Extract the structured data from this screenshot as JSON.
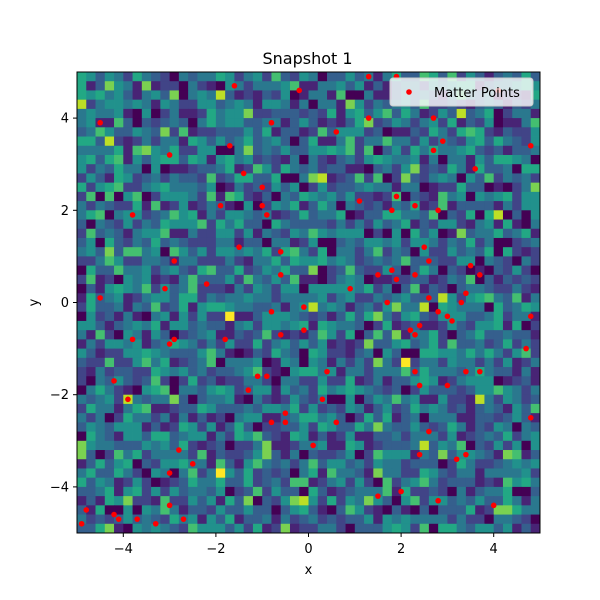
{
  "chart_data": {
    "type": "scatter",
    "title": "Snapshot 1",
    "xlabel": "x",
    "ylabel": "y",
    "xlim": [
      -5,
      5
    ],
    "ylim": [
      -5,
      5
    ],
    "x_ticks": [
      -4,
      -2,
      0,
      2,
      4
    ],
    "y_ticks": [
      -4,
      -2,
      0,
      2,
      4
    ],
    "x_tick_labels": [
      "−4",
      "−2",
      "0",
      "2",
      "4"
    ],
    "y_tick_labels": [
      "−4",
      "−2",
      "0",
      "2",
      "4"
    ],
    "background": {
      "type": "heatmap",
      "colormap": "viridis",
      "grid_size": 50
    },
    "legend": {
      "position": "top-right",
      "label": "Matter Points"
    },
    "series": [
      {
        "name": "Matter Points",
        "color": "#ff0000",
        "points": [
          [
            -4.5,
            3.9
          ],
          [
            -1.6,
            4.7
          ],
          [
            -0.2,
            4.6
          ],
          [
            1.3,
            4.9
          ],
          [
            1.9,
            4.9
          ],
          [
            4.1,
            4.6
          ],
          [
            -0.8,
            3.9
          ],
          [
            0.6,
            3.7
          ],
          [
            1.3,
            4.0
          ],
          [
            2.7,
            4.0
          ],
          [
            2.9,
            3.5
          ],
          [
            -1.7,
            3.4
          ],
          [
            -3.0,
            3.2
          ],
          [
            2.7,
            3.3
          ],
          [
            4.8,
            3.4
          ],
          [
            -1.4,
            2.8
          ],
          [
            3.6,
            2.9
          ],
          [
            -1.0,
            2.5
          ],
          [
            -1.9,
            2.1
          ],
          [
            -1.0,
            2.1
          ],
          [
            -0.9,
            1.9
          ],
          [
            -3.8,
            1.9
          ],
          [
            1.1,
            2.2
          ],
          [
            1.9,
            2.3
          ],
          [
            2.3,
            2.1
          ],
          [
            1.8,
            2.0
          ],
          [
            2.8,
            2.0
          ],
          [
            -1.5,
            1.2
          ],
          [
            -0.6,
            1.1
          ],
          [
            2.5,
            1.2
          ],
          [
            -2.9,
            0.9
          ],
          [
            2.6,
            0.9
          ],
          [
            -0.6,
            0.6
          ],
          [
            1.5,
            0.6
          ],
          [
            1.8,
            0.7
          ],
          [
            1.9,
            0.5
          ],
          [
            3.5,
            0.8
          ],
          [
            3.7,
            0.6
          ],
          [
            2.3,
            0.6
          ],
          [
            -2.2,
            0.4
          ],
          [
            0.9,
            0.3
          ],
          [
            -3.1,
            0.3
          ],
          [
            -4.5,
            0.1
          ],
          [
            2.6,
            0.1
          ],
          [
            3.3,
            0.0
          ],
          [
            1.7,
            0.0
          ],
          [
            3.4,
            0.2
          ],
          [
            -0.1,
            -0.1
          ],
          [
            -0.8,
            -0.2
          ],
          [
            2.8,
            -0.2
          ],
          [
            3.0,
            -0.3
          ],
          [
            3.1,
            -0.4
          ],
          [
            4.8,
            -0.3
          ],
          [
            -0.1,
            -0.6
          ],
          [
            2.4,
            -0.5
          ],
          [
            2.2,
            -0.6
          ],
          [
            2.3,
            -0.7
          ],
          [
            -0.6,
            -0.7
          ],
          [
            -2.9,
            -0.8
          ],
          [
            -3.8,
            -0.8
          ],
          [
            -1.8,
            -0.8
          ],
          [
            -3.0,
            -0.9
          ],
          [
            4.7,
            -1.0
          ],
          [
            2.3,
            -1.5
          ],
          [
            0.4,
            -1.5
          ],
          [
            -0.9,
            -1.6
          ],
          [
            -1.1,
            -1.6
          ],
          [
            3.4,
            -1.5
          ],
          [
            3.7,
            -1.5
          ],
          [
            -4.2,
            -1.7
          ],
          [
            2.4,
            -1.8
          ],
          [
            3.0,
            -1.8
          ],
          [
            -1.3,
            -1.9
          ],
          [
            -3.9,
            -2.1
          ],
          [
            0.3,
            -2.1
          ],
          [
            -0.5,
            -2.4
          ],
          [
            -0.5,
            -2.6
          ],
          [
            -0.8,
            -2.6
          ],
          [
            0.6,
            -2.6
          ],
          [
            2.6,
            -2.8
          ],
          [
            4.8,
            -2.5
          ],
          [
            0.1,
            -3.1
          ],
          [
            -2.8,
            -3.2
          ],
          [
            2.4,
            -3.3
          ],
          [
            3.4,
            -3.3
          ],
          [
            3.2,
            -3.4
          ],
          [
            -2.5,
            -3.5
          ],
          [
            -3.0,
            -3.7
          ],
          [
            1.5,
            -4.2
          ],
          [
            2.0,
            -4.1
          ],
          [
            2.8,
            -4.3
          ],
          [
            4.0,
            -4.4
          ],
          [
            -4.8,
            -4.5
          ],
          [
            -4.2,
            -4.6
          ],
          [
            -4.1,
            -4.7
          ],
          [
            -3.7,
            -4.7
          ],
          [
            -3.0,
            -4.4
          ],
          [
            -2.7,
            -4.7
          ],
          [
            -3.3,
            -4.8
          ],
          [
            -4.9,
            -4.8
          ]
        ]
      }
    ]
  }
}
